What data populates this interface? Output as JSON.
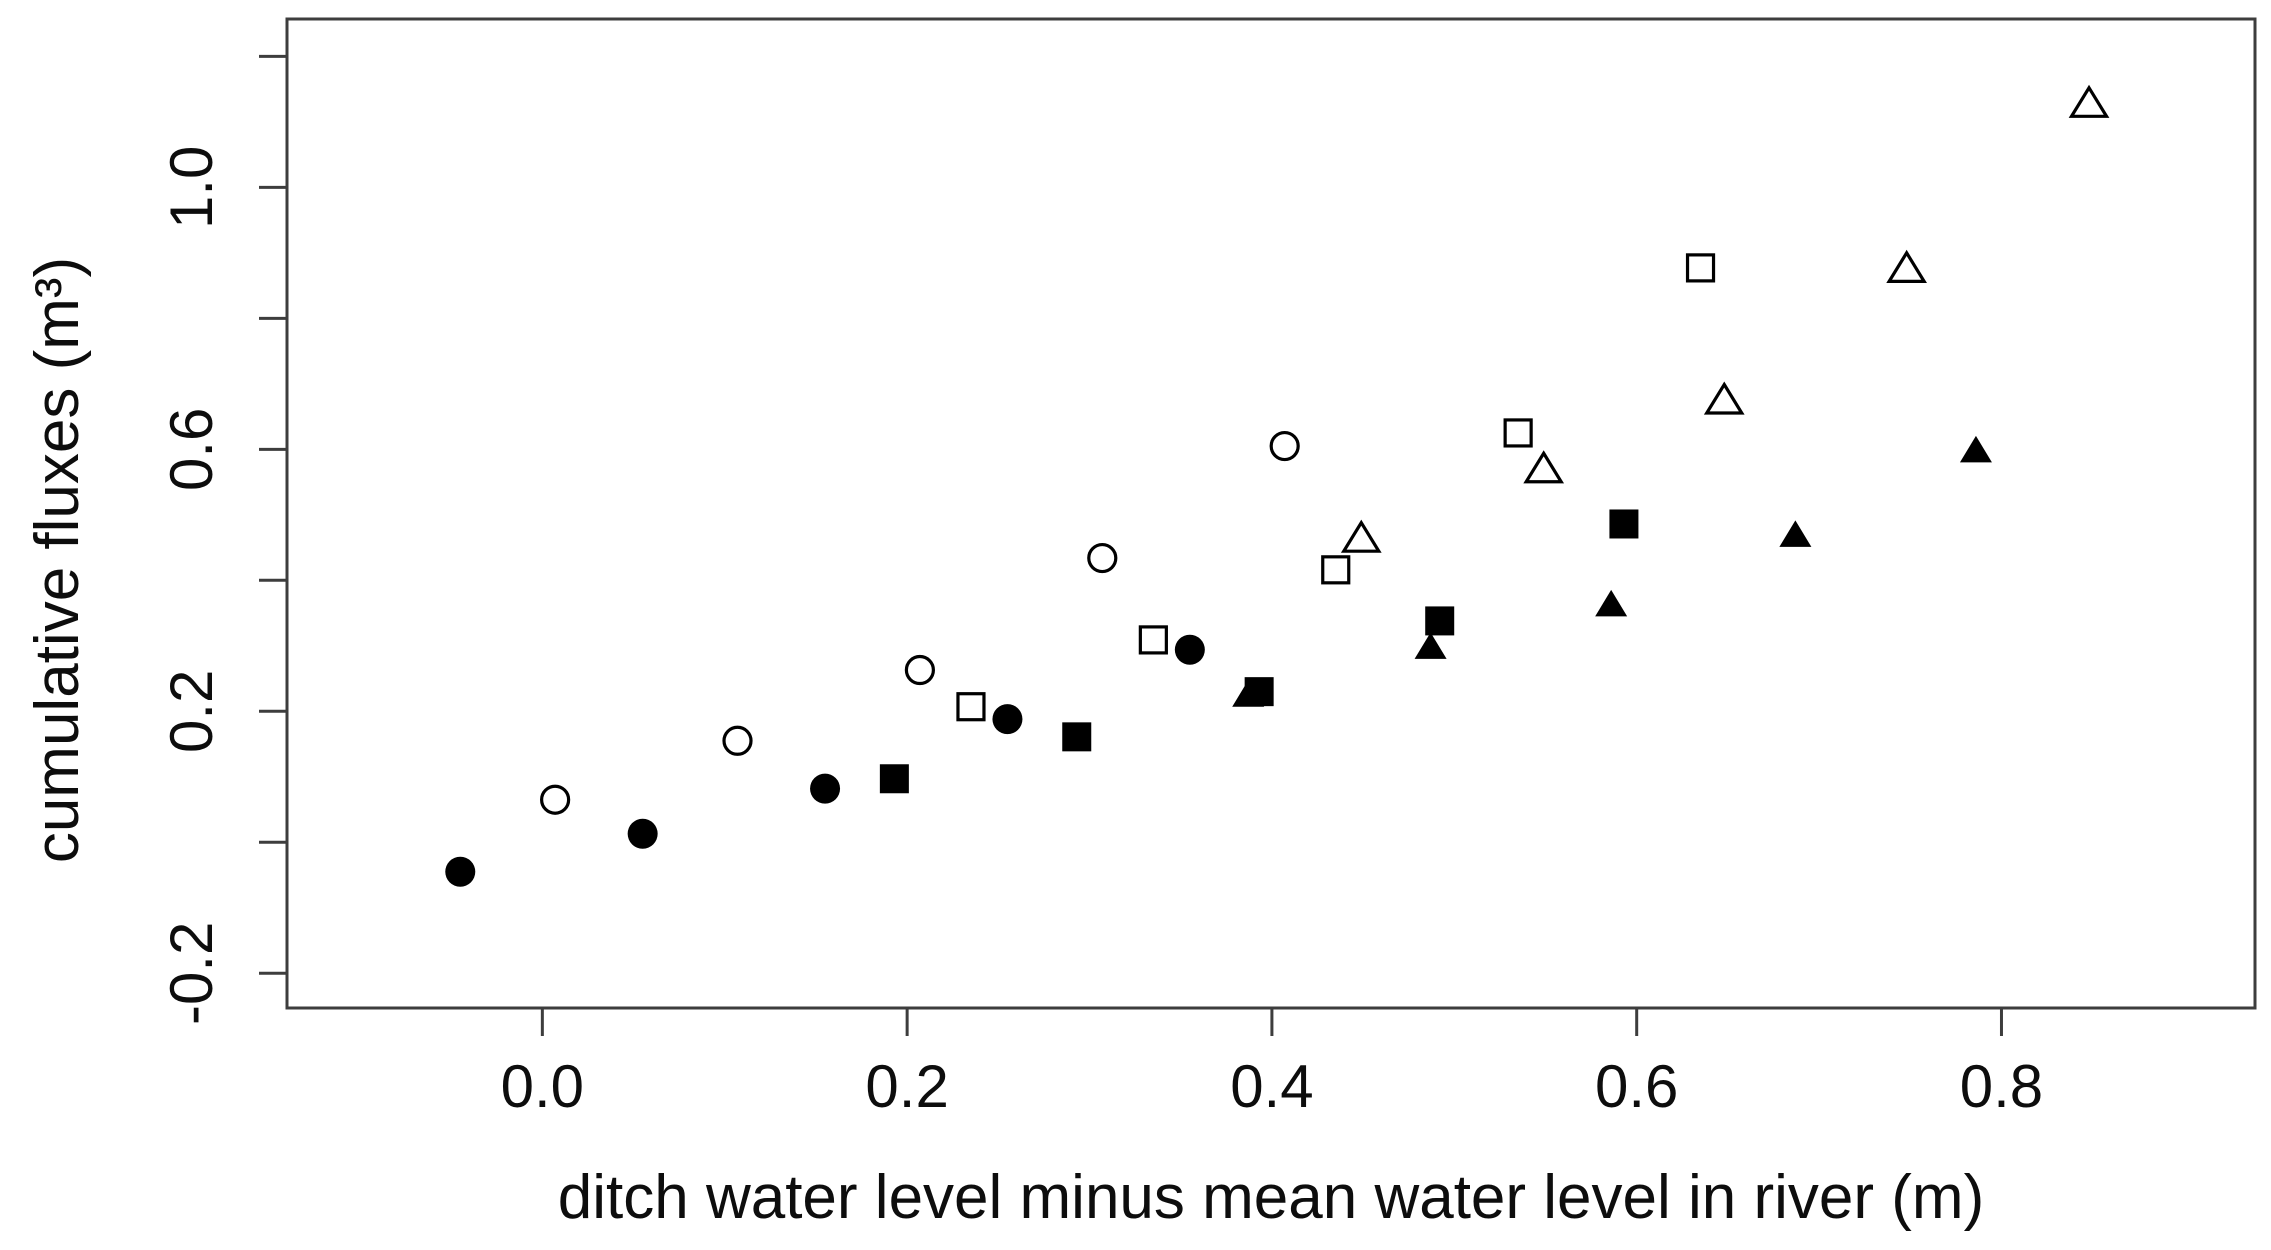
{
  "figure": {
    "background": "#ffffff",
    "frame_color": "#3d3d3d",
    "point_color": "#000000",
    "text_color": "#0d0d0d"
  },
  "chart_data": {
    "type": "scatter",
    "title": "",
    "xlabel": "ditch water level minus mean water level in river (m)",
    "ylabel": "cumulative fluxes (m³)",
    "xlim": [
      -0.14,
      0.939
    ],
    "ylim": [
      -0.253,
      1.257
    ],
    "grid": false,
    "legend": false,
    "x_ticks": {
      "values": [
        0.0,
        0.2,
        0.4,
        0.6,
        0.8
      ],
      "labels": [
        "0.0",
        "0.2",
        "0.4",
        "0.6",
        "0.8"
      ]
    },
    "y_ticks": {
      "values": [
        -0.2,
        0.0,
        0.2,
        0.4,
        0.6,
        0.8,
        1.0,
        1.2
      ],
      "labels": [
        "-0.2",
        "",
        "0.2",
        "",
        "0.6",
        "",
        "1.0",
        ""
      ]
    },
    "series": [
      {
        "name": "open circles",
        "symbol": "open-circle",
        "points": [
          [
            0.007,
            0.065
          ],
          [
            0.107,
            0.155
          ],
          [
            0.207,
            0.263
          ],
          [
            0.307,
            0.434
          ],
          [
            0.407,
            0.605
          ]
        ]
      },
      {
        "name": "filled circles",
        "symbol": "filled-circle",
        "points": [
          [
            -0.045,
            -0.045
          ],
          [
            0.055,
            0.013
          ],
          [
            0.155,
            0.082
          ],
          [
            0.255,
            0.188
          ],
          [
            0.355,
            0.294
          ]
        ]
      },
      {
        "name": "open squares",
        "symbol": "open-square",
        "points": [
          [
            0.235,
            0.207
          ],
          [
            0.335,
            0.309
          ],
          [
            0.435,
            0.416
          ],
          [
            0.535,
            0.625
          ],
          [
            0.635,
            0.877
          ]
        ]
      },
      {
        "name": "filled squares",
        "symbol": "filled-square",
        "points": [
          [
            0.193,
            0.097
          ],
          [
            0.293,
            0.161
          ],
          [
            0.393,
            0.23
          ],
          [
            0.492,
            0.338
          ],
          [
            0.593,
            0.486
          ]
        ]
      },
      {
        "name": "open triangles",
        "symbol": "open-triangle",
        "points": [
          [
            0.449,
            0.462
          ],
          [
            0.549,
            0.568
          ],
          [
            0.648,
            0.673
          ],
          [
            0.748,
            0.874
          ],
          [
            0.848,
            1.126
          ]
        ]
      },
      {
        "name": "filled triangles",
        "symbol": "filled-triangle",
        "points": [
          [
            0.387,
            0.223
          ],
          [
            0.487,
            0.296
          ],
          [
            0.586,
            0.361
          ],
          [
            0.687,
            0.467
          ],
          [
            0.786,
            0.596
          ]
        ]
      }
    ]
  }
}
